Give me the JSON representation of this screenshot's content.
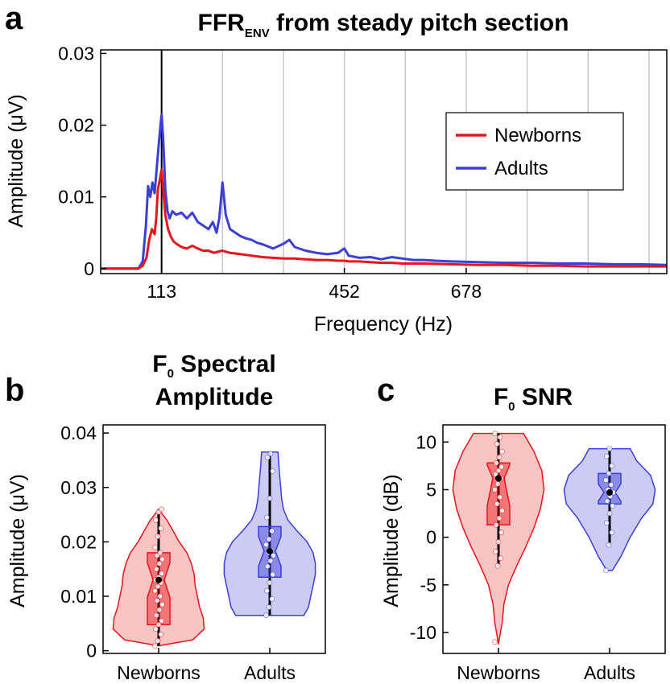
{
  "panel_labels": {
    "a": "a",
    "b": "b",
    "c": "c"
  },
  "colors": {
    "newborns": "#e8161b",
    "adults": "#3b3fd8",
    "newborns_fill": "#f7b0b0",
    "adults_fill": "#b9baf0"
  },
  "chart_data": [
    {
      "id": "a",
      "type": "line",
      "title_main": "FFR",
      "title_sub": "ENV",
      "title_rest": " from steady pitch section",
      "xlabel": "Frequency (Hz)",
      "ylabel": "Amplitude (μV)",
      "xlim": [
        0,
        1050
      ],
      "ylim": [
        -0.0007,
        0.0305
      ],
      "xticks": [
        113,
        452,
        678
      ],
      "xtick_labels": [
        "113",
        "452",
        "678"
      ],
      "yticks": [
        0,
        0.01,
        0.02,
        0.03
      ],
      "ytick_labels": [
        "0",
        "0.01",
        "0.02",
        "0.03"
      ],
      "vlines": [
        113,
        226,
        339,
        452,
        565,
        678,
        791,
        904,
        1017
      ],
      "f0_marker": 113,
      "legend_position": "top-right",
      "series": [
        {
          "name": "Newborns",
          "color_key": "newborns",
          "x": [
            0,
            50,
            70,
            78,
            85,
            90,
            95,
            100,
            103,
            106,
            110,
            113,
            116,
            120,
            125,
            130,
            135,
            140,
            150,
            160,
            170,
            180,
            190,
            200,
            210,
            225,
            240,
            260,
            280,
            300,
            320,
            340,
            360,
            380,
            400,
            420,
            440,
            452,
            460,
            480,
            500,
            520,
            540,
            560,
            580,
            600,
            650,
            700,
            750,
            800,
            850,
            900,
            950,
            1000,
            1050
          ],
          "y": [
            0,
            0,
            0,
            0.0004,
            0.0015,
            0.004,
            0.0055,
            0.0048,
            0.007,
            0.011,
            0.0125,
            0.0138,
            0.011,
            0.0075,
            0.0055,
            0.0045,
            0.0038,
            0.0035,
            0.003,
            0.0028,
            0.0032,
            0.0028,
            0.0025,
            0.0025,
            0.0022,
            0.0025,
            0.0022,
            0.002,
            0.0018,
            0.0016,
            0.0015,
            0.0014,
            0.0014,
            0.0013,
            0.0012,
            0.0012,
            0.0011,
            0.0011,
            0.001,
            0.001,
            0.0009,
            0.0008,
            0.0008,
            0.0007,
            0.0007,
            0.0007,
            0.0006,
            0.0005,
            0.0005,
            0.0004,
            0.0004,
            0.0003,
            0.0003,
            0.0003,
            0.0003
          ]
        },
        {
          "name": "Adults",
          "color_key": "adults",
          "x": [
            0,
            50,
            70,
            78,
            84,
            88,
            92,
            96,
            100,
            104,
            108,
            111,
            113,
            116,
            120,
            124,
            128,
            133,
            140,
            150,
            160,
            170,
            180,
            190,
            200,
            208,
            215,
            220,
            226,
            232,
            240,
            250,
            260,
            270,
            280,
            290,
            300,
            320,
            340,
            350,
            360,
            380,
            400,
            420,
            440,
            452,
            460,
            480,
            500,
            520,
            540,
            560,
            580,
            600,
            620,
            650,
            700,
            750,
            800,
            850,
            900,
            950,
            1000,
            1050
          ],
          "y": [
            0,
            0,
            0,
            0.001,
            0.006,
            0.0115,
            0.01,
            0.012,
            0.0105,
            0.014,
            0.0175,
            0.02,
            0.0215,
            0.018,
            0.011,
            0.008,
            0.007,
            0.008,
            0.0075,
            0.0078,
            0.007,
            0.0078,
            0.0065,
            0.006,
            0.0055,
            0.0065,
            0.005,
            0.007,
            0.012,
            0.0075,
            0.0055,
            0.005,
            0.0045,
            0.0042,
            0.004,
            0.0036,
            0.0034,
            0.0028,
            0.0035,
            0.004,
            0.003,
            0.0025,
            0.0022,
            0.002,
            0.0022,
            0.0028,
            0.0018,
            0.0015,
            0.0016,
            0.0013,
            0.0016,
            0.0014,
            0.0012,
            0.0012,
            0.0011,
            0.001,
            0.0009,
            0.0008,
            0.0008,
            0.0007,
            0.0007,
            0.0006,
            0.0006,
            0.0005
          ]
        }
      ]
    },
    {
      "id": "b",
      "type": "violin",
      "title_line1_main": "F",
      "title_line1_sub": "0",
      "title_line1_rest": " Spectral",
      "title_line2": "Amplitude",
      "ylabel": "Amplitude (μV)",
      "xlabel": "",
      "categories": [
        "Newborns",
        "Adults"
      ],
      "ylim": [
        -0.0005,
        0.0415
      ],
      "yticks": [
        0,
        0.01,
        0.02,
        0.03,
        0.04
      ],
      "ytick_labels": [
        "0",
        "0.01",
        "0.02",
        "0.03",
        "0.04"
      ],
      "groups": [
        {
          "name": "Newborns",
          "color_key": "newborns",
          "fill_key": "newborns_fill",
          "violin_y": [
            0.0009,
            0.002,
            0.004,
            0.006,
            0.008,
            0.01,
            0.012,
            0.014,
            0.016,
            0.018,
            0.02,
            0.022,
            0.024,
            0.026
          ],
          "violin_w": [
            0.0,
            0.75,
            1.0,
            0.98,
            0.9,
            0.85,
            0.8,
            0.78,
            0.72,
            0.62,
            0.45,
            0.32,
            0.18,
            0.0
          ],
          "q1": 0.0048,
          "median": 0.013,
          "q3": 0.018,
          "notch_lo": 0.0098,
          "notch_hi": 0.0162,
          "whisker_lo": 0.0009,
          "whisker_hi": 0.026,
          "points": [
            0.0009,
            0.0018,
            0.003,
            0.004,
            0.0048,
            0.0055,
            0.0065,
            0.0075,
            0.0085,
            0.0092,
            0.01,
            0.011,
            0.0118,
            0.0125,
            0.013,
            0.0135,
            0.0142,
            0.015,
            0.016,
            0.0168,
            0.0175,
            0.018,
            0.019,
            0.021,
            0.0225,
            0.024,
            0.0255,
            0.026
          ]
        },
        {
          "name": "Adults",
          "color_key": "adults",
          "fill_key": "adults_fill",
          "violin_y": [
            0.0065,
            0.008,
            0.01,
            0.012,
            0.014,
            0.016,
            0.018,
            0.02,
            0.022,
            0.024,
            0.026,
            0.028,
            0.03,
            0.032,
            0.034,
            0.0365
          ],
          "violin_w": [
            0.75,
            0.85,
            0.9,
            0.95,
            1.0,
            1.0,
            0.95,
            0.82,
            0.6,
            0.4,
            0.3,
            0.26,
            0.24,
            0.22,
            0.2,
            0.18
          ],
          "q1": 0.0135,
          "median": 0.0183,
          "q3": 0.0228,
          "notch_lo": 0.0155,
          "notch_hi": 0.021,
          "whisker_lo": 0.0065,
          "whisker_hi": 0.0365,
          "points": [
            0.0065,
            0.008,
            0.0095,
            0.011,
            0.0125,
            0.014,
            0.0155,
            0.0165,
            0.0175,
            0.018,
            0.0185,
            0.0195,
            0.0205,
            0.022,
            0.0245,
            0.028,
            0.033,
            0.0355,
            0.0362
          ]
        }
      ]
    },
    {
      "id": "c",
      "type": "violin",
      "title_line1_main": "F",
      "title_line1_sub": "0",
      "title_line1_rest": " SNR",
      "title_line2": "",
      "ylabel": "Amplitude (dB)",
      "xlabel": "",
      "categories": [
        "Newborns",
        "Adults"
      ],
      "ylim": [
        -12.2,
        11.8
      ],
      "yticks": [
        -10,
        -5,
        0,
        5,
        10
      ],
      "ytick_labels": [
        "-10",
        "-5",
        "0",
        "5",
        "10"
      ],
      "groups": [
        {
          "name": "Newborns",
          "color_key": "newborns",
          "fill_key": "newborns_fill",
          "violin_y": [
            -11.2,
            -9,
            -7,
            -5,
            -3,
            -1,
            1,
            3,
            5,
            7,
            9,
            10.9
          ],
          "violin_w": [
            0.0,
            0.08,
            0.12,
            0.22,
            0.4,
            0.6,
            0.78,
            0.92,
            1.0,
            0.95,
            0.78,
            0.55
          ],
          "q1": 1.3,
          "median": 6.2,
          "q3": 7.8,
          "notch_lo": 3.3,
          "notch_hi": 7.6,
          "whisker_lo": -3.0,
          "whisker_hi": 10.9,
          "points": [
            -11.0,
            -3.0,
            -2.2,
            -1.5,
            -0.5,
            0.5,
            1.3,
            2.0,
            2.8,
            3.5,
            4.2,
            5.0,
            5.6,
            6.2,
            6.6,
            7.0,
            7.4,
            7.8,
            8.4,
            9.0,
            9.8,
            10.5,
            10.9
          ]
        },
        {
          "name": "Adults",
          "color_key": "adults",
          "fill_key": "adults_fill",
          "violin_y": [
            -3.5,
            -2,
            0,
            2,
            3.5,
            5,
            6.5,
            8,
            9.3
          ],
          "violin_w": [
            0.06,
            0.25,
            0.45,
            0.7,
            0.95,
            1.0,
            0.9,
            0.6,
            0.45
          ],
          "q1": 3.5,
          "median": 4.7,
          "q3": 6.7,
          "notch_lo": 3.8,
          "notch_hi": 5.6,
          "whisker_lo": -0.8,
          "whisker_hi": 9.3,
          "points": [
            -3.5,
            -0.8,
            0.5,
            1.5,
            2.5,
            3.3,
            3.8,
            4.3,
            4.7,
            5.0,
            5.5,
            6.0,
            6.7,
            7.5,
            8.5,
            9.3
          ]
        }
      ]
    }
  ]
}
